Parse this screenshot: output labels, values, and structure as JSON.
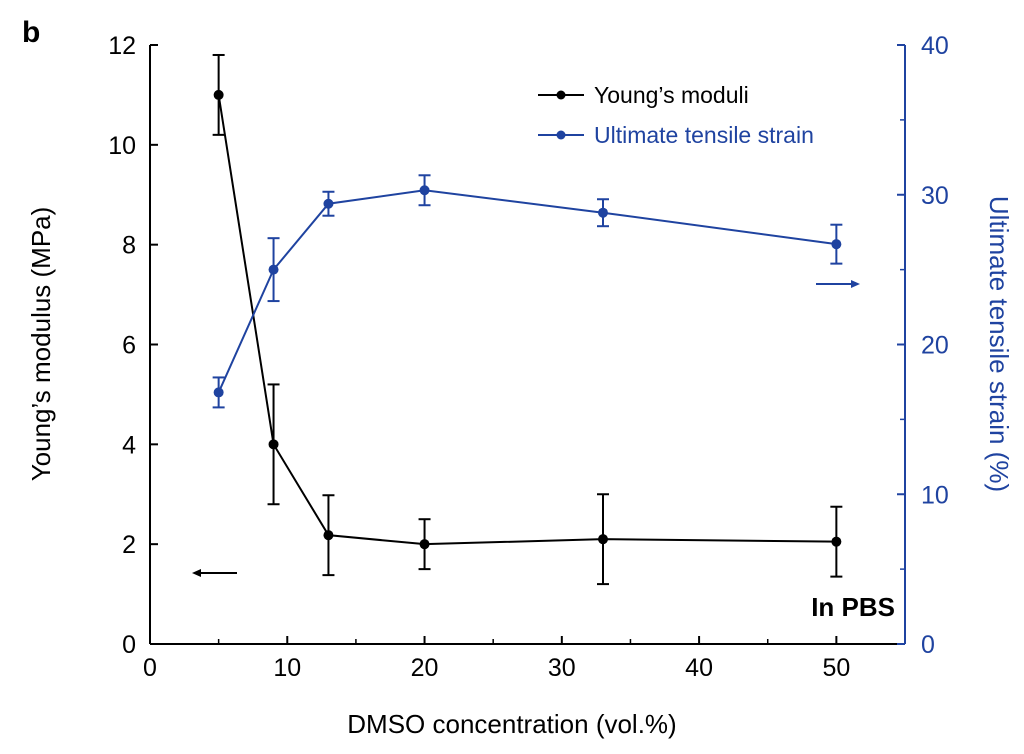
{
  "panel_label": "b",
  "colors": {
    "black": "#000000",
    "blue": "#1f43a0"
  },
  "chart_data": {
    "type": "line",
    "xlabel": "DMSO concentration (vol.%)",
    "ylabel_left": "Young’s modulus (MPa)",
    "ylabel_right": "Ultimate tensile strain (%)",
    "xlim": [
      0,
      55
    ],
    "ylim_left": [
      0,
      12
    ],
    "ylim_right": [
      0,
      40
    ],
    "x_ticks": [
      "0",
      "10",
      "20",
      "30",
      "40",
      "50"
    ],
    "y_left_ticks": [
      "0",
      "2",
      "4",
      "6",
      "8",
      "10",
      "12"
    ],
    "y_right_ticks": [
      "0",
      "10",
      "20",
      "30",
      "40"
    ],
    "legend_position": "top-right",
    "annotation": "In PBS",
    "series": [
      {
        "name": "Young’s moduli",
        "axis": "left",
        "color": "#000000",
        "x": [
          5,
          9,
          13,
          20,
          33,
          50
        ],
        "y": [
          11.0,
          4.0,
          2.18,
          2.0,
          2.1,
          2.05
        ],
        "err": [
          0.8,
          1.2,
          0.8,
          0.5,
          0.9,
          0.7
        ]
      },
      {
        "name": "Ultimate tensile strain",
        "axis": "right",
        "color": "#1f43a0",
        "x": [
          5,
          9,
          13,
          20,
          33,
          50
        ],
        "y": [
          16.8,
          25.0,
          29.4,
          30.3,
          28.8,
          26.7
        ],
        "err": [
          1.0,
          2.1,
          0.8,
          1.0,
          0.9,
          1.3
        ]
      }
    ]
  }
}
